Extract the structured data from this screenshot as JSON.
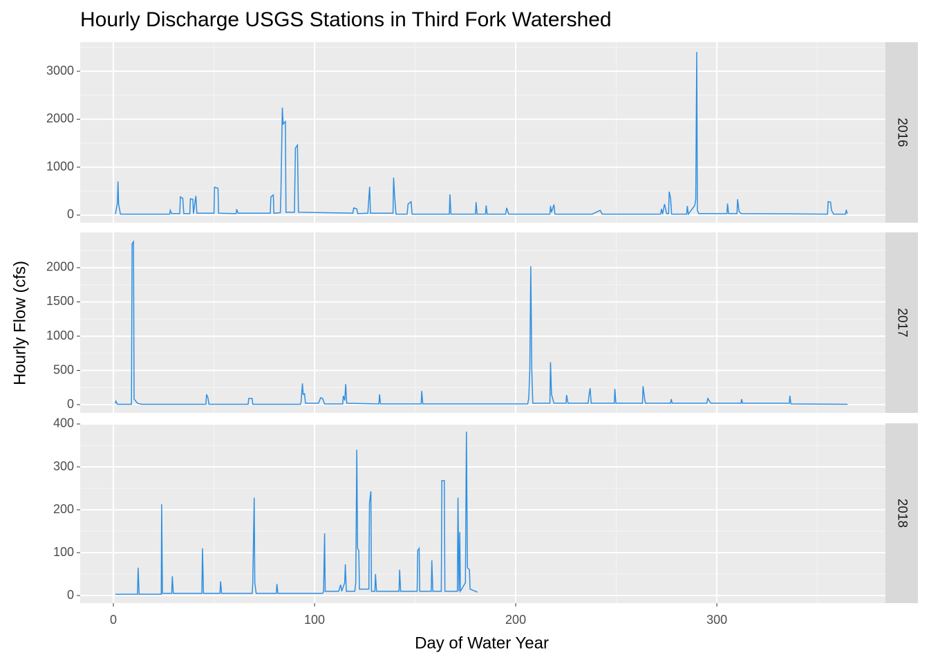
{
  "chart_data": {
    "type": "line",
    "title": "Hourly Discharge USGS Stations in Third Fork Watershed",
    "x_label": "Day of Water Year",
    "y_label": "Hourly Flow (cfs)",
    "color": "#2f8fe0",
    "grid": true,
    "xlim": [
      -16.5,
      383.8
    ],
    "xticks": [
      0,
      100,
      200,
      300
    ],
    "facets": [
      {
        "name": "2016",
        "ylim": [
          -159,
          3606
        ],
        "yticks": [
          0,
          1000,
          2000,
          3000
        ],
        "x": [
          1,
          2,
          2.3,
          2.6,
          3.5,
          28,
          28.3,
          29,
          33,
          33.3,
          34.5,
          35,
          38,
          38.3,
          39.5,
          39.8,
          40.5,
          41,
          41.5,
          50,
          50.3,
          52,
          52.3,
          61,
          61.3,
          62,
          78,
          78.3,
          79.5,
          79.8,
          83,
          83.3,
          84,
          84.4,
          85.5,
          85.8,
          90,
          90.5,
          91.5,
          92,
          119,
          119.5,
          121,
          121.5,
          126.5,
          127,
          127.4,
          127.8,
          139,
          139.3,
          139.8,
          140.5,
          146,
          146.5,
          148,
          148.5,
          167,
          167.3,
          167.8,
          180,
          180.3,
          180.8,
          185,
          185.3,
          185.8,
          195,
          195.5,
          196.5,
          217,
          217.3,
          217.8,
          219,
          219.5,
          238,
          242,
          243,
          272,
          272.5,
          273,
          274,
          275,
          276,
          276.3,
          277,
          277.5,
          285,
          285.3,
          285.8,
          289,
          289.5,
          290,
          290.3,
          291,
          305,
          305.3,
          305.8,
          310,
          310.3,
          311,
          312,
          355,
          355.3,
          356.5,
          357,
          358,
          364,
          364.3,
          364.8
        ],
        "values": [
          20,
          250,
          700,
          230,
          20,
          20,
          100,
          30,
          30,
          380,
          350,
          30,
          30,
          340,
          330,
          30,
          250,
          400,
          40,
          40,
          580,
          560,
          40,
          30,
          120,
          40,
          40,
          380,
          420,
          40,
          50,
          480,
          2240,
          1900,
          1950,
          60,
          60,
          1400,
          1460,
          60,
          40,
          150,
          130,
          30,
          40,
          350,
          590,
          40,
          40,
          780,
          400,
          20,
          20,
          230,
          280,
          20,
          20,
          430,
          20,
          20,
          270,
          20,
          20,
          200,
          20,
          20,
          150,
          20,
          20,
          190,
          60,
          220,
          20,
          20,
          100,
          20,
          20,
          130,
          20,
          230,
          30,
          30,
          490,
          350,
          20,
          20,
          190,
          20,
          200,
          330,
          3400,
          100,
          30,
          30,
          240,
          30,
          30,
          330,
          80,
          30,
          20,
          280,
          270,
          100,
          20,
          20,
          110,
          30
        ]
      },
      {
        "name": "2017",
        "ylim": [
          -121,
          2515
        ],
        "yticks": [
          0,
          500,
          1000,
          1500,
          2000
        ],
        "x": [
          1,
          1.3,
          2,
          9,
          9.3,
          10,
          10.3,
          12,
          14,
          46,
          46.3,
          47,
          47.5,
          67,
          67.3,
          69,
          69.3,
          93,
          93.3,
          94,
          94.3,
          95,
          95.5,
          102,
          103,
          104,
          105,
          114,
          114.3,
          115,
          115.5,
          116,
          132,
          132.3,
          132.8,
          153,
          153.3,
          153.8,
          206,
          206.5,
          207,
          207.5,
          208,
          208.5,
          217,
          217.3,
          217.8,
          219,
          225,
          225.3,
          226,
          236,
          236.5,
          237,
          237.5,
          249,
          249.3,
          249.8,
          263,
          263.3,
          264,
          264.5,
          277,
          277.3,
          277.8,
          295,
          295.5,
          297,
          312,
          312.3,
          312.8,
          336,
          336.3,
          336.8,
          365
        ],
        "values": [
          20,
          50,
          5,
          5,
          2350,
          2380,
          80,
          20,
          5,
          5,
          150,
          100,
          5,
          5,
          90,
          90,
          5,
          5,
          40,
          310,
          150,
          160,
          20,
          20,
          100,
          90,
          10,
          10,
          130,
          60,
          300,
          20,
          10,
          150,
          10,
          10,
          200,
          10,
          10,
          100,
          500,
          2020,
          480,
          20,
          20,
          620,
          150,
          20,
          20,
          140,
          20,
          20,
          150,
          240,
          20,
          20,
          230,
          20,
          20,
          270,
          100,
          20,
          20,
          80,
          20,
          20,
          90,
          20,
          20,
          80,
          20,
          20,
          130,
          10,
          5
        ]
      },
      {
        "name": "2018",
        "ylim": [
          -17.7,
          401.6
        ],
        "yticks": [
          0,
          100,
          200,
          300,
          400
        ],
        "x": [
          1,
          12,
          12.3,
          12.8,
          23.8,
          24,
          24.4,
          29,
          29.3,
          29.8,
          44,
          44.3,
          44.8,
          53,
          53.3,
          53.8,
          69,
          69.3,
          70,
          70.3,
          71,
          81,
          81.3,
          81.8,
          104,
          104.5,
          105,
          105.3,
          112,
          113,
          113.5,
          115,
          115.3,
          115.8,
          120,
          120.5,
          121,
          121.4,
          122,
          122.3,
          127,
          127.3,
          128,
          128.3,
          130,
          130.3,
          130.8,
          142,
          142.3,
          142.8,
          151,
          151.3,
          152,
          152.3,
          158,
          158.3,
          158.8,
          163,
          163.3,
          164.5,
          164.8,
          171,
          171.3,
          171.8,
          172.2,
          172.5,
          175,
          175.5,
          176,
          177,
          177.3,
          181
        ],
        "values": [
          3,
          3,
          65,
          3,
          3,
          213,
          5,
          5,
          45,
          5,
          5,
          110,
          5,
          5,
          33,
          5,
          5,
          30,
          228,
          30,
          5,
          5,
          27,
          5,
          5,
          10,
          145,
          10,
          10,
          25,
          10,
          30,
          73,
          10,
          10,
          30,
          340,
          110,
          105,
          15,
          15,
          215,
          243,
          10,
          10,
          50,
          10,
          10,
          60,
          10,
          10,
          105,
          110,
          10,
          10,
          82,
          10,
          10,
          268,
          268,
          10,
          10,
          228,
          10,
          148,
          10,
          30,
          382,
          65,
          60,
          15,
          8
        ]
      }
    ]
  }
}
